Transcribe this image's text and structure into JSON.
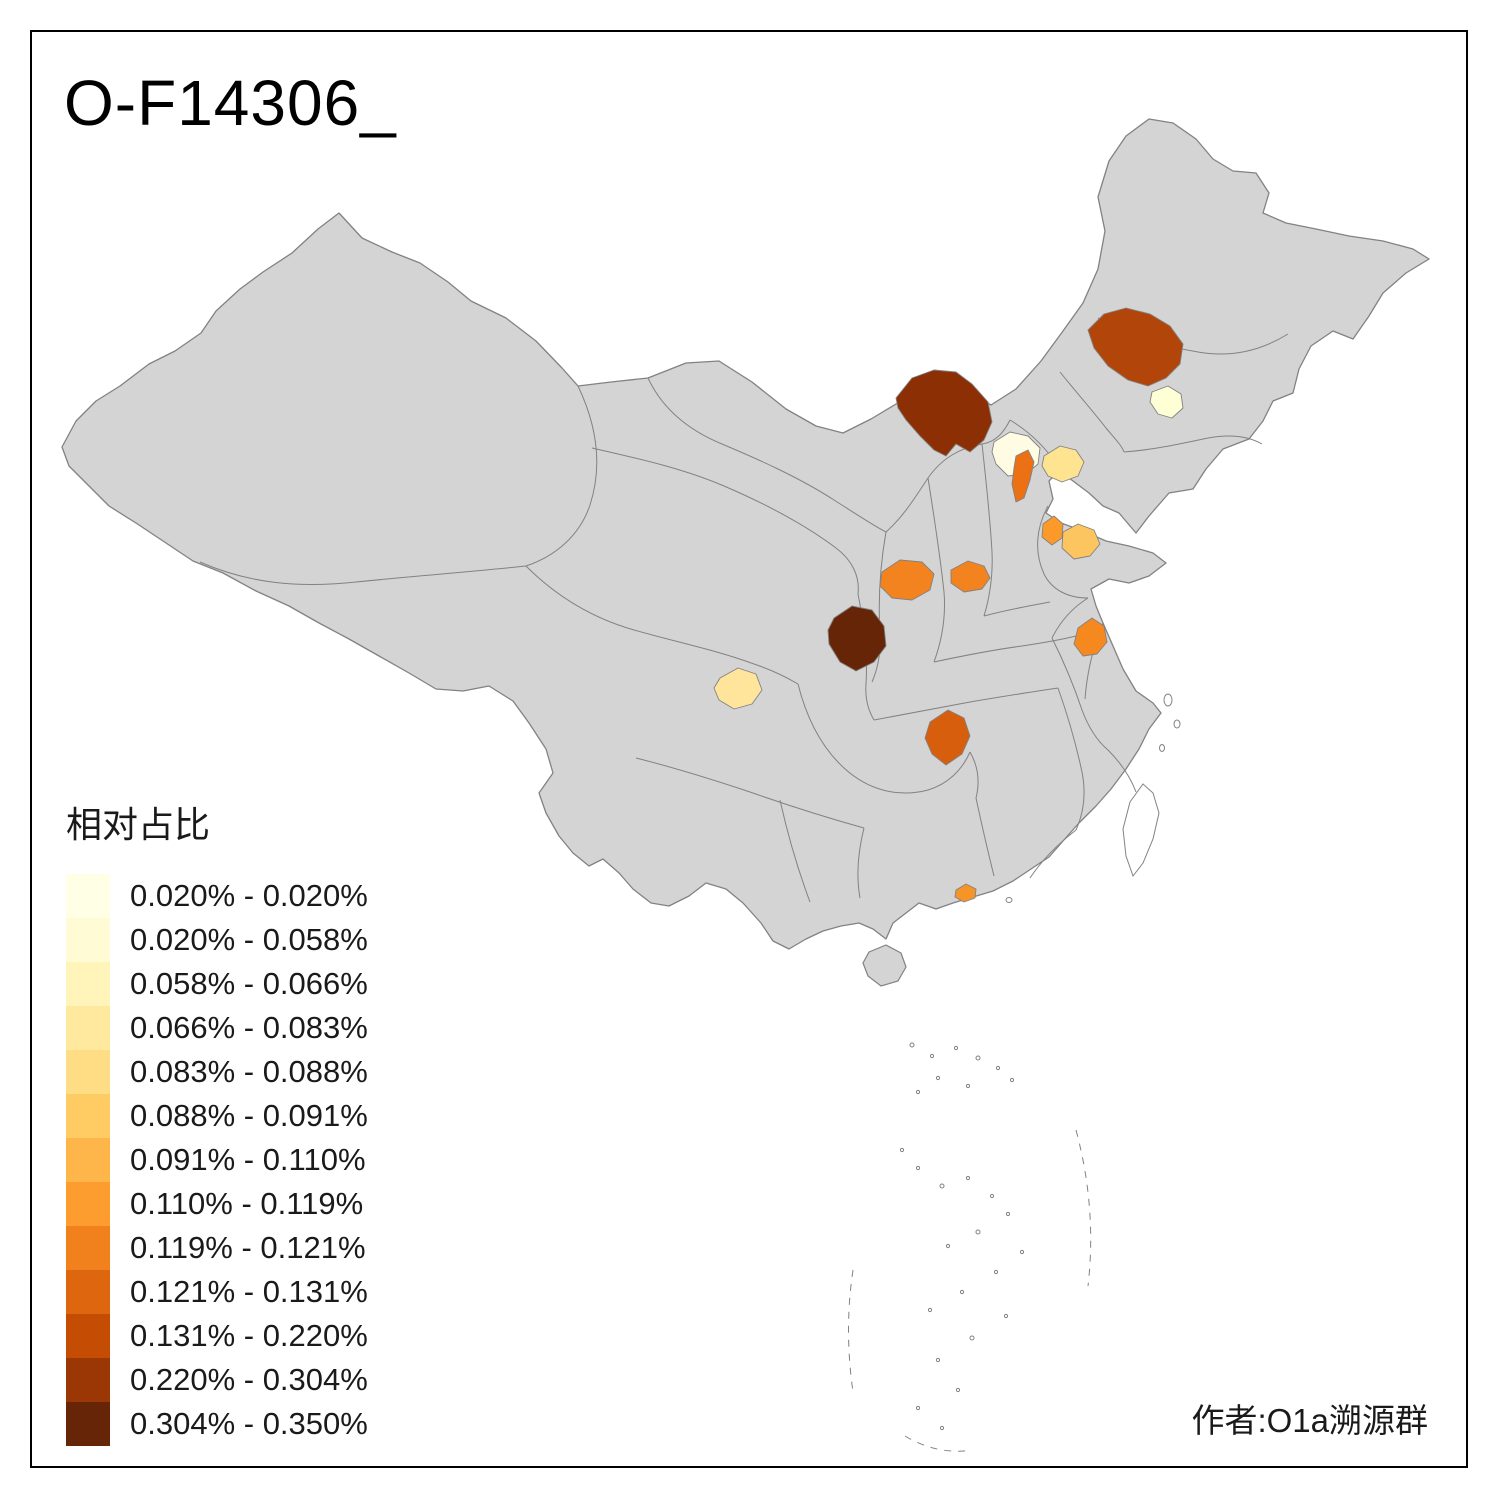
{
  "title": "O-F14306_",
  "author": "作者:O1a溯源群",
  "legend": {
    "title": "相对占比",
    "items": [
      {
        "color": "#ffffe5",
        "label": "0.020% - 0.020%"
      },
      {
        "color": "#fffbd4",
        "label": "0.020% - 0.058%"
      },
      {
        "color": "#fff4ba",
        "label": "0.058% - 0.066%"
      },
      {
        "color": "#fee99e",
        "label": "0.066% - 0.083%"
      },
      {
        "color": "#fedd84",
        "label": "0.083% - 0.088%"
      },
      {
        "color": "#fecc63",
        "label": "0.088% - 0.091%"
      },
      {
        "color": "#feb54a",
        "label": "0.091% - 0.110%"
      },
      {
        "color": "#fd9c2f",
        "label": "0.110% - 0.119%"
      },
      {
        "color": "#f1811d",
        "label": "0.119% - 0.121%"
      },
      {
        "color": "#de660f",
        "label": "0.121% - 0.131%"
      },
      {
        "color": "#c44d03",
        "label": "0.131% - 0.220%"
      },
      {
        "color": "#9a3704",
        "label": "0.220% - 0.304%"
      },
      {
        "color": "#662506",
        "label": "0.304% - 0.350%"
      }
    ]
  },
  "map": {
    "land_fill": "#d4d4d4",
    "border_color": "#828282",
    "sea_fill": "#ffffff",
    "regions": [
      {
        "id": "region-heilongjiang",
        "color": "#b2460a"
      },
      {
        "id": "region-heilongjiang-east-pale",
        "color": "#ffffd6"
      },
      {
        "id": "region-inner-mongolia",
        "color": "#8c2f04"
      },
      {
        "id": "region-beijing",
        "color": "#fffce3"
      },
      {
        "id": "region-tianjin",
        "color": "#ec7014"
      },
      {
        "id": "region-hebei-east",
        "color": "#fee391"
      },
      {
        "id": "region-shandong-west",
        "color": "#fb9a29"
      },
      {
        "id": "region-shandong-central",
        "color": "#fdc55f"
      },
      {
        "id": "region-shanxi-west",
        "color": "#f3831f"
      },
      {
        "id": "region-shanxi-southeast",
        "color": "#f3831f"
      },
      {
        "id": "region-south-gansu-darkest",
        "color": "#662506"
      },
      {
        "id": "region-chengdu",
        "color": "#fee59b"
      },
      {
        "id": "region-chongqing",
        "color": "#d65e0c"
      },
      {
        "id": "region-anhui",
        "color": "#f5891f"
      },
      {
        "id": "region-pearl-delta",
        "color": "#f79428"
      }
    ]
  }
}
